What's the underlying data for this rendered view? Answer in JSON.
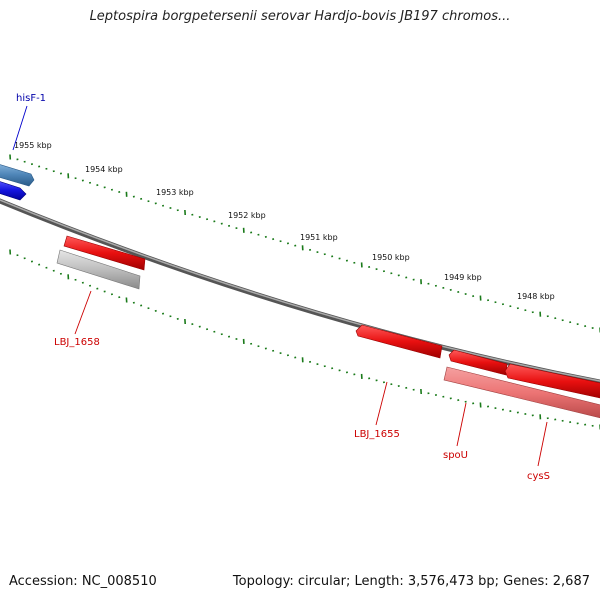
{
  "title": "Leptospira borgpetersenii serovar Hardjo-bovis JB197 chromos...",
  "footer": {
    "accession": "Accession: NC_008510",
    "info": "Topology: circular; Length: 3,576,473 bp; Genes: 2,687"
  },
  "scale_labels": [
    "1955 kbp",
    "1954 kbp",
    "1953 kbp",
    "1952 kbp",
    "1951 kbp",
    "1950 kbp",
    "1949 kbp",
    "1948 kbp"
  ],
  "gene_labels": {
    "hisF": "hisF-1",
    "lbj1658": "LBJ_1658",
    "lbj1655": "LBJ_1655",
    "spoU": "spoU",
    "cysS": "cysS"
  },
  "colors": {
    "backbone": "#777777",
    "tick": "#1a7a1a",
    "forward_gene": "#e01010",
    "reverse_gene": "#ee7070",
    "blue_gene": "#1a1adc",
    "steelblue_gene": "#4f86b8",
    "grey_gene": "#b8b8b8",
    "red_label": "#cc0000",
    "blue_label": "#0000aa"
  }
}
